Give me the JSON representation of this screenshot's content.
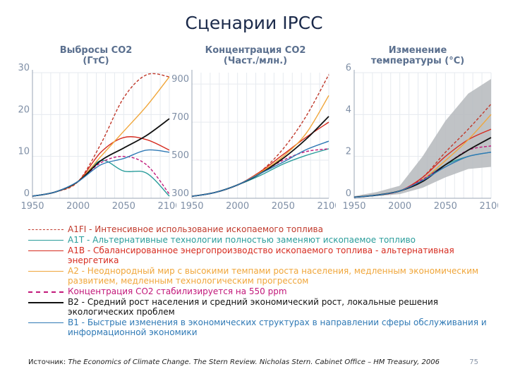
{
  "slide": {
    "title": "Сценарии IPCC",
    "source_label": "Источник:",
    "source_ref": "The Economics of Climate Change. The Stern Review. Nicholas Stern. Cabinet Office – HM Treasury, 2006",
    "page_number": "75"
  },
  "legend": [
    {
      "id": "A1FI",
      "label": "А1FI - Интенсивное использование ископаемого топлива",
      "color": "#c0392b",
      "dash": "dashed"
    },
    {
      "id": "A1T",
      "label": "А1T - Альтернативные технологии полностью заменяют ископаемое топливо",
      "color": "#2a9d9b",
      "dash": "solid"
    },
    {
      "id": "A1B",
      "label": "А1B - Сбалансированное энергопроизводство ископаемого топлива - альтернативная энергетика",
      "color": "#d62b1f",
      "dash": "solid"
    },
    {
      "id": "A2",
      "label": "А2 - Неоднородный мир с высокими темпами роста населения, медленным экономическим развитием, медленным технологическим прогрессом",
      "color": "#f0a63a",
      "dash": "solid"
    },
    {
      "id": "S550",
      "label": "Концентрация CO2 стабилизируется на 550 ppm",
      "color": "#c2187a",
      "dash": "dashed"
    },
    {
      "id": "B2",
      "label": "В2 - Средний рост населения и средний экономический рост, локальные решения экологических проблем",
      "color": "#111111",
      "dash": "solid"
    },
    {
      "id": "B1",
      "label": "В1 - Быстрые изменения в экономических структурах в направлении сферы обслуживания и информационной экономики",
      "color": "#2f79b5",
      "dash": "solid"
    }
  ],
  "chart_data": [
    {
      "type": "line",
      "title": "Выбросы CO2 (ГтС)",
      "title_lines": [
        "Выбросы CO2",
        "(ГтС)"
      ],
      "x": [
        1950,
        1975,
        2000,
        2025,
        2050,
        2075,
        2100
      ],
      "xticks": [
        1950,
        2000,
        2050,
        2100
      ],
      "yticks": [
        0,
        10,
        20,
        30
      ],
      "ylim": [
        0,
        30
      ],
      "xlim": [
        1950,
        2100
      ],
      "grid": true,
      "series": [
        {
          "name": "A1FI",
          "values": [
            0.5,
            1.5,
            4,
            13,
            24,
            29.5,
            29
          ]
        },
        {
          "name": "A1T",
          "values": [
            0.5,
            1.5,
            4,
            9,
            6.5,
            6,
            0.5
          ]
        },
        {
          "name": "A1B",
          "values": [
            0.5,
            1.5,
            4,
            11,
            14.5,
            14,
            11.5
          ]
        },
        {
          "name": "A2",
          "values": [
            0.5,
            1.5,
            4,
            10,
            16,
            22,
            29
          ]
        },
        {
          "name": "S550",
          "values": [
            0.5,
            1.5,
            4,
            8.5,
            10,
            8,
            1
          ]
        },
        {
          "name": "B2",
          "values": [
            0.5,
            1.5,
            4,
            9,
            12,
            15,
            19
          ]
        },
        {
          "name": "B1",
          "values": [
            0.5,
            1.5,
            4,
            8,
            9.5,
            11.5,
            11
          ]
        }
      ]
    },
    {
      "type": "line",
      "title": "Концентрация CO2 (Част./млн.)",
      "title_lines": [
        "Концентрация CO2",
        "(Част./млн.)"
      ],
      "x": [
        1950,
        1975,
        2000,
        2025,
        2050,
        2075,
        2100
      ],
      "xticks": [
        1950,
        2000,
        2050,
        2100
      ],
      "yticks": [
        300,
        500,
        700,
        900
      ],
      "ylim": [
        300,
        960
      ],
      "xlim": [
        1950,
        2100
      ],
      "grid": true,
      "series": [
        {
          "name": "A1FI",
          "values": [
            310,
            330,
            370,
            440,
            560,
            730,
            950
          ]
        },
        {
          "name": "A1T",
          "values": [
            310,
            330,
            370,
            420,
            480,
            525,
            560
          ]
        },
        {
          "name": "A1B",
          "values": [
            310,
            330,
            370,
            440,
            530,
            620,
            700
          ]
        },
        {
          "name": "A2",
          "values": [
            310,
            330,
            370,
            435,
            520,
            640,
            840
          ]
        },
        {
          "name": "S550",
          "values": [
            310,
            330,
            370,
            430,
            500,
            545,
            560
          ]
        },
        {
          "name": "B2",
          "values": [
            310,
            330,
            370,
            430,
            510,
            610,
            730
          ]
        },
        {
          "name": "B1",
          "values": [
            310,
            330,
            370,
            430,
            490,
            555,
            600
          ]
        }
      ]
    },
    {
      "type": "line",
      "title": "Изменение температуры (°C)",
      "title_lines": [
        "Изменение",
        "температуры (°C)"
      ],
      "x": [
        1950,
        1975,
        2000,
        2025,
        2050,
        2075,
        2100
      ],
      "xticks": [
        1950,
        2000,
        2050,
        2100
      ],
      "yticks": [
        0,
        2,
        4,
        6
      ],
      "ylim": [
        0,
        6
      ],
      "xlim": [
        1950,
        2100
      ],
      "grid": true,
      "uncertainty_band": {
        "x": [
          1950,
          1975,
          2000,
          2025,
          2050,
          2075,
          2100
        ],
        "low": [
          0.05,
          0.1,
          0.2,
          0.5,
          1.0,
          1.4,
          1.5
        ],
        "high": [
          0.1,
          0.3,
          0.6,
          2.0,
          3.7,
          5.0,
          5.7
        ]
      },
      "series": [
        {
          "name": "A1FI",
          "values": [
            0.05,
            0.15,
            0.35,
            1.0,
            2.2,
            3.3,
            4.5
          ]
        },
        {
          "name": "A1T",
          "values": [
            0.05,
            0.15,
            0.35,
            0.9,
            1.6,
            2.0,
            2.2
          ]
        },
        {
          "name": "A1B",
          "values": [
            0.05,
            0.15,
            0.35,
            1.0,
            2.0,
            2.8,
            3.3
          ]
        },
        {
          "name": "A2",
          "values": [
            0.05,
            0.15,
            0.35,
            0.9,
            1.8,
            2.8,
            4.0
          ]
        },
        {
          "name": "S550",
          "values": [
            0.05,
            0.15,
            0.35,
            0.9,
            1.6,
            2.3,
            2.5
          ]
        },
        {
          "name": "B2",
          "values": [
            0.05,
            0.15,
            0.35,
            0.8,
            1.6,
            2.3,
            2.9
          ]
        },
        {
          "name": "B1",
          "values": [
            0.05,
            0.15,
            0.35,
            0.85,
            1.5,
            2.0,
            2.2
          ]
        }
      ]
    }
  ]
}
